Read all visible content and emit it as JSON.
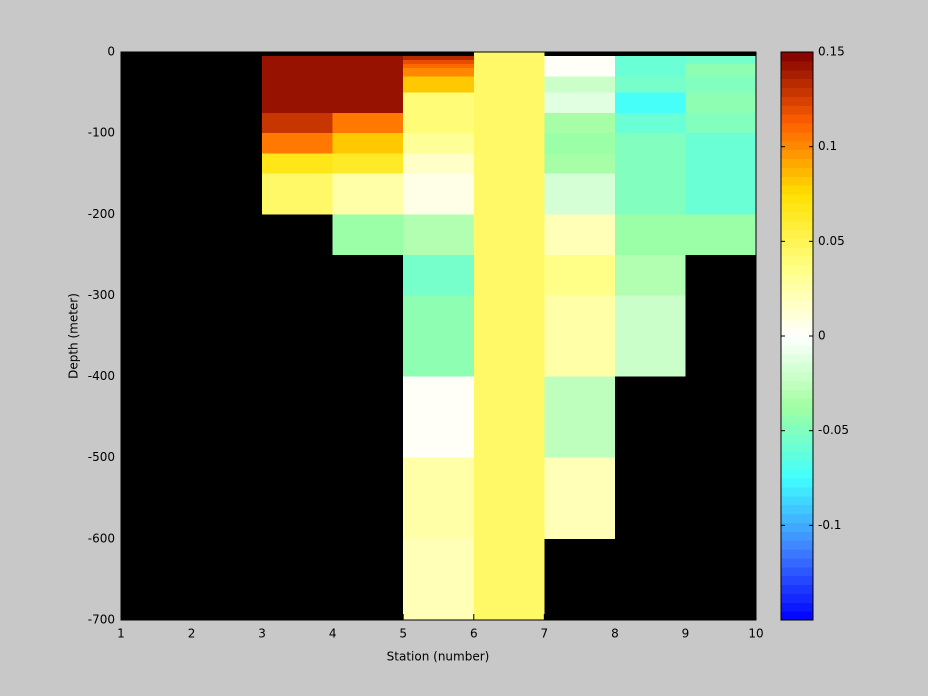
{
  "chart_data": {
    "type": "heatmap",
    "xlabel": "Station (number)",
    "ylabel": "Depth (meter)",
    "xlim": [
      1,
      10
    ],
    "ylim": [
      -700,
      0
    ],
    "xticks": [
      1,
      2,
      3,
      4,
      5,
      6,
      7,
      8,
      9,
      10
    ],
    "yticks": [
      0,
      -100,
      -200,
      -300,
      -400,
      -500,
      -600,
      -700
    ],
    "clim": [
      -0.15,
      0.15
    ],
    "cticks": [
      -0.1,
      -0.05,
      0,
      0.05,
      0.1,
      0.15
    ],
    "background": "#000000",
    "colormap": [
      "#0000ff",
      "#4080ff",
      "#40ffff",
      "#a0ffa0",
      "#ffffff",
      "#ffff80",
      "#ffe000",
      "#ff6000",
      "#800000"
    ],
    "cells": [
      {
        "x": [
          6,
          7
        ],
        "depth": [
          0,
          -700
        ],
        "value": 0.045
      },
      {
        "x": [
          3,
          4
        ],
        "depth": [
          -5,
          -75
        ],
        "value": 0.145
      },
      {
        "x": [
          3,
          4
        ],
        "depth": [
          -75,
          -100
        ],
        "value": 0.13
      },
      {
        "x": [
          3,
          4
        ],
        "depth": [
          -100,
          -125
        ],
        "value": 0.105
      },
      {
        "x": [
          3,
          4
        ],
        "depth": [
          -125,
          -150
        ],
        "value": 0.07
      },
      {
        "x": [
          3,
          4
        ],
        "depth": [
          -150,
          -200
        ],
        "value": 0.045
      },
      {
        "x": [
          4,
          5
        ],
        "depth": [
          -5,
          -75
        ],
        "value": 0.145
      },
      {
        "x": [
          4,
          5
        ],
        "depth": [
          -75,
          -100
        ],
        "value": 0.105
      },
      {
        "x": [
          4,
          5
        ],
        "depth": [
          -100,
          -125
        ],
        "value": 0.08
      },
      {
        "x": [
          4,
          5
        ],
        "depth": [
          -125,
          -150
        ],
        "value": 0.065
      },
      {
        "x": [
          4,
          5
        ],
        "depth": [
          -150,
          -200
        ],
        "value": 0.025
      },
      {
        "x": [
          4,
          5
        ],
        "depth": [
          -200,
          -250
        ],
        "value": -0.04
      },
      {
        "x": [
          5,
          6
        ],
        "depth": [
          -5,
          -10
        ],
        "value": 0.135
      },
      {
        "x": [
          5,
          6
        ],
        "depth": [
          -10,
          -15
        ],
        "value": 0.12
      },
      {
        "x": [
          5,
          6
        ],
        "depth": [
          -15,
          -20
        ],
        "value": 0.11
      },
      {
        "x": [
          5,
          6
        ],
        "depth": [
          -20,
          -30
        ],
        "value": 0.1
      },
      {
        "x": [
          5,
          6
        ],
        "depth": [
          -30,
          -50
        ],
        "value": 0.08
      },
      {
        "x": [
          5,
          6
        ],
        "depth": [
          -50,
          -100
        ],
        "value": 0.04
      },
      {
        "x": [
          5,
          6
        ],
        "depth": [
          -100,
          -125
        ],
        "value": 0.03
      },
      {
        "x": [
          5,
          6
        ],
        "depth": [
          -125,
          -150
        ],
        "value": 0.015
      },
      {
        "x": [
          5,
          6
        ],
        "depth": [
          -150,
          -200
        ],
        "value": 0.005
      },
      {
        "x": [
          5,
          6
        ],
        "depth": [
          -200,
          -250
        ],
        "value": -0.03
      },
      {
        "x": [
          5,
          6
        ],
        "depth": [
          -250,
          -300
        ],
        "value": -0.055
      },
      {
        "x": [
          5,
          6
        ],
        "depth": [
          -300,
          -400
        ],
        "value": -0.045
      },
      {
        "x": [
          5,
          6
        ],
        "depth": [
          -400,
          -500
        ],
        "value": 0.002
      },
      {
        "x": [
          5,
          6
        ],
        "depth": [
          -500,
          -600
        ],
        "value": 0.025
      },
      {
        "x": [
          5,
          6
        ],
        "depth": [
          -600,
          -700
        ],
        "value": 0.02
      },
      {
        "x": [
          7,
          8
        ],
        "depth": [
          -5,
          -30
        ],
        "value": 0
      },
      {
        "x": [
          7,
          8
        ],
        "depth": [
          -30,
          -50
        ],
        "value": -0.02
      },
      {
        "x": [
          7,
          8
        ],
        "depth": [
          -50,
          -75
        ],
        "value": -0.01
      },
      {
        "x": [
          7,
          8
        ],
        "depth": [
          -75,
          -100
        ],
        "value": -0.035
      },
      {
        "x": [
          7,
          8
        ],
        "depth": [
          -100,
          -125
        ],
        "value": -0.04
      },
      {
        "x": [
          7,
          8
        ],
        "depth": [
          -125,
          -150
        ],
        "value": -0.035
      },
      {
        "x": [
          7,
          8
        ],
        "depth": [
          -150,
          -200
        ],
        "value": -0.015
      },
      {
        "x": [
          7,
          8
        ],
        "depth": [
          -200,
          -250
        ],
        "value": 0.02
      },
      {
        "x": [
          7,
          8
        ],
        "depth": [
          -250,
          -300
        ],
        "value": 0.035
      },
      {
        "x": [
          7,
          8
        ],
        "depth": [
          -300,
          -400
        ],
        "value": 0.025
      },
      {
        "x": [
          7,
          8
        ],
        "depth": [
          -400,
          -500
        ],
        "value": -0.025
      },
      {
        "x": [
          7,
          8
        ],
        "depth": [
          -500,
          -600
        ],
        "value": 0.02
      },
      {
        "x": [
          8,
          9
        ],
        "depth": [
          -5,
          -15
        ],
        "value": -0.06
      },
      {
        "x": [
          8,
          9
        ],
        "depth": [
          -15,
          -30
        ],
        "value": -0.06
      },
      {
        "x": [
          8,
          9
        ],
        "depth": [
          -30,
          -50
        ],
        "value": -0.055
      },
      {
        "x": [
          8,
          9
        ],
        "depth": [
          -50,
          -75
        ],
        "value": -0.075
      },
      {
        "x": [
          8,
          9
        ],
        "depth": [
          -75,
          -100
        ],
        "value": -0.06
      },
      {
        "x": [
          8,
          9
        ],
        "depth": [
          -100,
          -200
        ],
        "value": -0.05
      },
      {
        "x": [
          8,
          9
        ],
        "depth": [
          -200,
          -250
        ],
        "value": -0.04
      },
      {
        "x": [
          8,
          9
        ],
        "depth": [
          -250,
          -300
        ],
        "value": -0.03
      },
      {
        "x": [
          8,
          9
        ],
        "depth": [
          -300,
          -400
        ],
        "value": -0.02
      },
      {
        "x": [
          9,
          10
        ],
        "depth": [
          -5,
          -15
        ],
        "value": -0.055
      },
      {
        "x": [
          9,
          10
        ],
        "depth": [
          -15,
          -30
        ],
        "value": -0.045
      },
      {
        "x": [
          9,
          10
        ],
        "depth": [
          -30,
          -50
        ],
        "value": -0.05
      },
      {
        "x": [
          9,
          10
        ],
        "depth": [
          -50,
          -75
        ],
        "value": -0.045
      },
      {
        "x": [
          9,
          10
        ],
        "depth": [
          -75,
          -100
        ],
        "value": -0.05
      },
      {
        "x": [
          9,
          10
        ],
        "depth": [
          -100,
          -200
        ],
        "value": -0.06
      },
      {
        "x": [
          9,
          10
        ],
        "depth": [
          -200,
          -250
        ],
        "value": -0.04
      }
    ]
  }
}
